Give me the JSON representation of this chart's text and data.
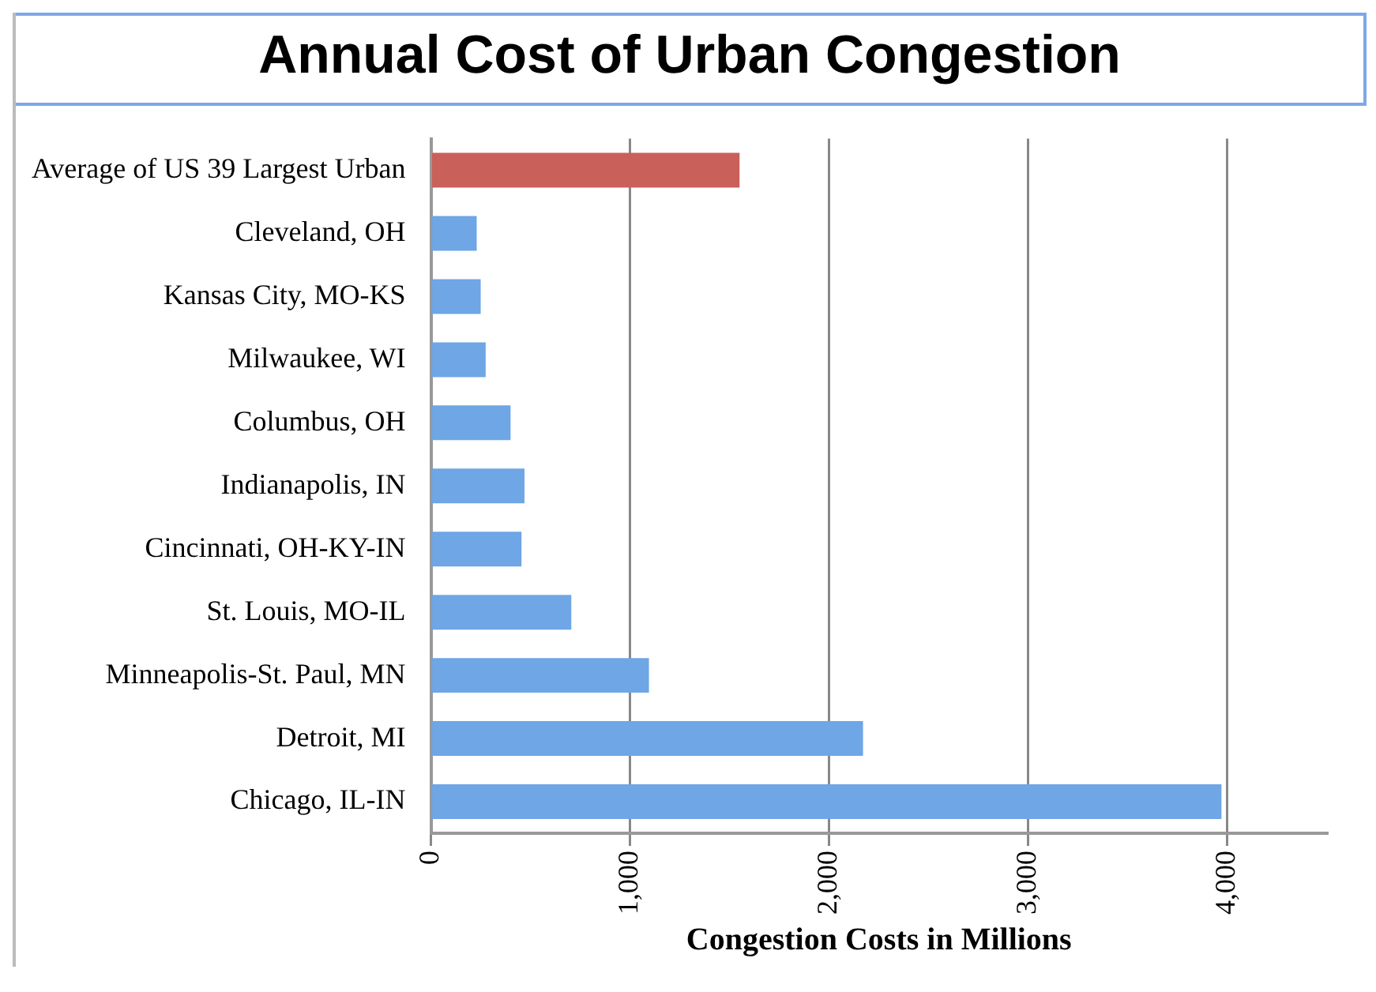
{
  "chart_data": {
    "type": "bar",
    "orientation": "horizontal",
    "title": "Annual Cost of Urban Congestion",
    "xlabel": "Congestion Costs in Millions",
    "categories": [
      "Average of US 39 Largest Urban",
      "Cleveland, OH",
      "Kansas City, MO-KS",
      "Milwaukee, WI",
      "Columbus, OH",
      "Indianapolis, IN",
      "Cincinnati, OH-KY-IN",
      "St. Louis, MO-IL",
      "Minneapolis-St. Paul, MN",
      "Detroit, MI",
      "Chicago, IL-IN"
    ],
    "values": [
      1550,
      230,
      250,
      275,
      400,
      470,
      455,
      705,
      1095,
      2170,
      3970
    ],
    "colors": [
      "#c9605a",
      "#6ea6e6",
      "#6ea6e6",
      "#6ea6e6",
      "#6ea6e6",
      "#6ea6e6",
      "#6ea6e6",
      "#6ea6e6",
      "#6ea6e6",
      "#6ea6e6",
      "#6ea6e6"
    ],
    "xlim": [
      0,
      4500
    ],
    "xticks": [
      {
        "value": 0,
        "label": "0"
      },
      {
        "value": 1000,
        "label": "1,000"
      },
      {
        "value": 2000,
        "label": "2,000"
      },
      {
        "value": 3000,
        "label": "3,000"
      },
      {
        "value": 4000,
        "label": "4,000"
      }
    ],
    "grid": "x",
    "legend": false
  }
}
